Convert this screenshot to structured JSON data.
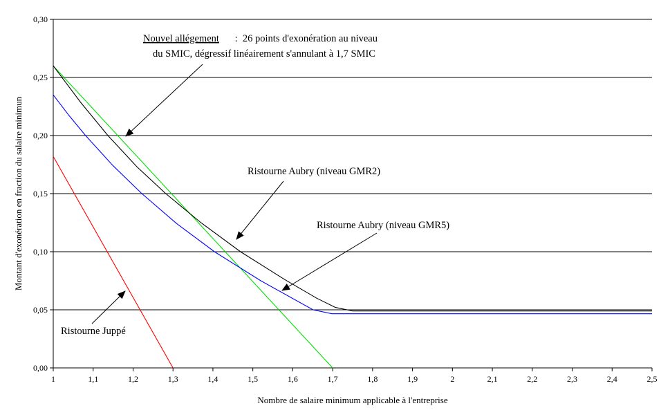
{
  "chart_data": {
    "type": "line",
    "title": "",
    "xlabel": "Nombre de salaire minimum applicable à l'entreprise",
    "ylabel": "Montant d'exonération en fraction du salaire minimun",
    "xlim": [
      1,
      2.5
    ],
    "ylim": [
      0,
      0.3
    ],
    "x_ticks": [
      "1",
      "1,1",
      "1,2",
      "1,3",
      "1,4",
      "1,5",
      "1,6",
      "1,7",
      "1,8",
      "1,9",
      "2",
      "2,1",
      "2,2",
      "2,3",
      "2,4",
      "2,5"
    ],
    "y_ticks": [
      "0,00",
      "0,05",
      "0,10",
      "0,15",
      "0,20",
      "0,25",
      "0,30"
    ],
    "grid": "horizontal",
    "legend": "none",
    "series": [
      {
        "key": "nouvel",
        "color": "#00e000",
        "points": [
          [
            1,
            0.26
          ],
          [
            1.7,
            0
          ]
        ]
      },
      {
        "key": "juppe",
        "color": "#ff0000",
        "points": [
          [
            1,
            0.182
          ],
          [
            1.3,
            0
          ]
        ]
      },
      {
        "key": "gmr2",
        "color": "#000000",
        "points": [
          [
            1,
            0.26
          ],
          [
            1.07,
            0.228
          ],
          [
            1.137,
            0.2
          ],
          [
            1.21,
            0.173
          ],
          [
            1.282,
            0.15
          ],
          [
            1.37,
            0.125
          ],
          [
            1.469,
            0.1
          ],
          [
            1.58,
            0.076
          ],
          [
            1.66,
            0.06
          ],
          [
            1.707,
            0.052
          ],
          [
            1.75,
            0.049
          ],
          [
            2.5,
            0.049
          ]
        ]
      },
      {
        "key": "gmr5",
        "color": "#0000ff",
        "points": [
          [
            1,
            0.235
          ],
          [
            1.04,
            0.217
          ],
          [
            1.081,
            0.2
          ],
          [
            1.15,
            0.174
          ],
          [
            1.222,
            0.15
          ],
          [
            1.31,
            0.124
          ],
          [
            1.404,
            0.1
          ],
          [
            1.52,
            0.075
          ],
          [
            1.651,
            0.05
          ],
          [
            1.698,
            0.0466
          ],
          [
            2.5,
            0.0466
          ]
        ]
      }
    ],
    "annotations": {
      "nouvel_title": "Nouvel allégement",
      "nouvel_line1": " :  26 points d'exonération au niveau",
      "nouvel_line2": "du SMIC, dégressif linéairement s'annulant à 1,7 SMIC",
      "gmr2": "Ristourne Aubry (niveau GMR2)",
      "gmr5": "Ristourne Aubry (niveau GMR5)",
      "juppe": "Ristourne Juppé"
    }
  }
}
